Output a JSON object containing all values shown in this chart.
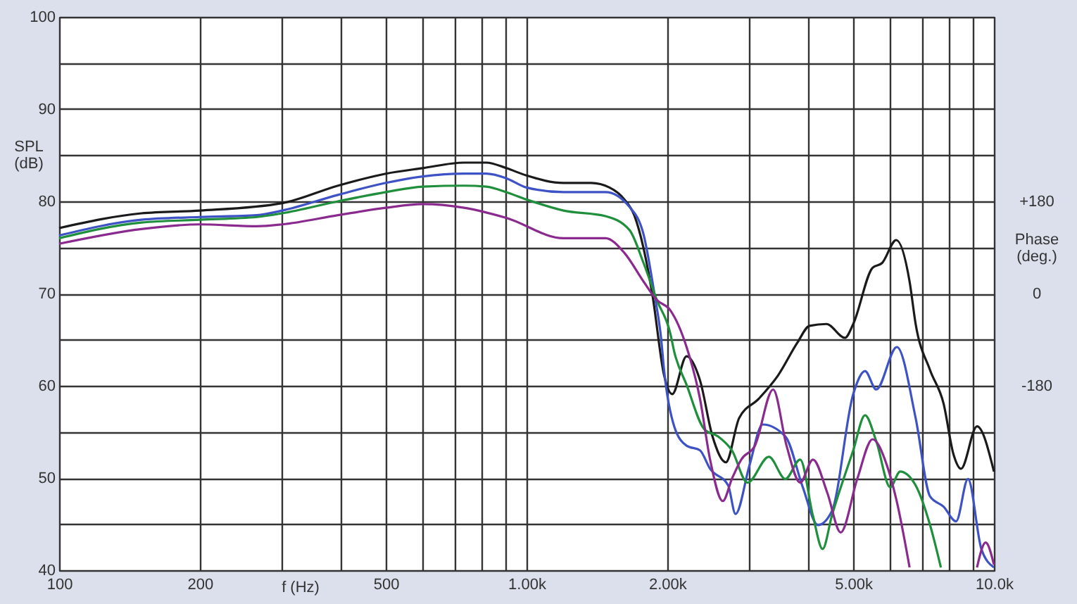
{
  "chart_data": {
    "type": "line",
    "xlabel": "f (Hz)",
    "ylabel": "SPL (dB)",
    "y2label": "Phase (deg.)",
    "log": "x",
    "grid": true,
    "marker": "none",
    "line_style": "solid",
    "xlim": [
      100,
      10000
    ],
    "xticks": [
      100,
      {
        "value": 200,
        "label": "200"
      },
      {
        "value": 300,
        "label": null
      },
      {
        "value": 400,
        "label": null
      },
      {
        "value": 500,
        "label": "500"
      },
      {
        "value": 600,
        "label": null
      },
      {
        "value": 700,
        "label": null
      },
      {
        "value": 800,
        "label": null
      },
      {
        "value": 900,
        "label": null
      },
      {
        "value": 1000,
        "label": "1.00k"
      },
      {
        "value": 2000,
        "label": "2.00k"
      },
      {
        "value": 3000,
        "label": null
      },
      {
        "value": 4000,
        "label": null
      },
      {
        "value": 5000,
        "label": "5.00k"
      },
      {
        "value": 6000,
        "label": null
      },
      {
        "value": 7000,
        "label": null
      },
      {
        "value": 8000,
        "label": null
      },
      {
        "value": 9000,
        "label": null
      },
      {
        "value": 10000,
        "label": "10.0k"
      }
    ],
    "ylim": [
      40,
      100
    ],
    "yticks": [
      40,
      {
        "value": 45,
        "label": null
      },
      50,
      {
        "value": 55,
        "label": null
      },
      60,
      {
        "value": 65,
        "label": null
      },
      70,
      {
        "value": 75,
        "label": null
      },
      80,
      {
        "value": 85,
        "label": null
      },
      90,
      {
        "value": 95,
        "label": null
      },
      100
    ],
    "y2lim": [
      -540,
      540
    ],
    "y2ticks": [
      {
        "value": 180,
        "label": "+180"
      },
      0,
      -180
    ],
    "series": [
      {
        "color": "#1a1a1a",
        "x": [
          100,
          150,
          200,
          300,
          395,
          500,
          600,
          735,
          820,
          905,
          1000,
          1200,
          1375,
          1505,
          1620,
          1700,
          1780,
          1860,
          1970,
          2050,
          2200,
          2350,
          2500,
          2670,
          2850,
          3140,
          3450,
          3800,
          4030,
          4380,
          4800,
          5000,
          5500,
          5760,
          6180,
          6600,
          6800,
          7300,
          7800,
          8200,
          8500,
          9200,
          10000
        ],
        "values": [
          77.1,
          78.7,
          79.0,
          79.8,
          81.7,
          83.0,
          83.6,
          84.2,
          84.2,
          83.6,
          82.8,
          82.0,
          82.0,
          81.5,
          80.2,
          78.5,
          74.9,
          69.8,
          61.1,
          59.1,
          63.2,
          60.6,
          54.5,
          51.7,
          56.5,
          58.6,
          61.1,
          64.7,
          66.5,
          66.7,
          65.2,
          66.7,
          72.8,
          73.3,
          75.8,
          71.3,
          66.7,
          61.7,
          58.1,
          52.5,
          51.0,
          55.6,
          50.7
        ]
      },
      {
        "color": "#3d52c4",
        "x": [
          100,
          150,
          200,
          265,
          300,
          395,
          500,
          600,
          735,
          820,
          905,
          1000,
          1200,
          1475,
          1660,
          1780,
          1880,
          1940,
          1970,
          2070,
          2200,
          2350,
          2470,
          2700,
          2800,
          3000,
          3200,
          3580,
          3900,
          4200,
          4500,
          5000,
          5300,
          5600,
          6200,
          6800,
          7300,
          7800,
          8300,
          8800,
          9400,
          10000
        ],
        "values": [
          76.3,
          78.0,
          78.3,
          78.5,
          79.0,
          80.7,
          82.0,
          82.7,
          83.0,
          83.0,
          82.5,
          81.5,
          81.0,
          81.0,
          79.4,
          76.4,
          69.8,
          65.2,
          61.6,
          55.6,
          53.5,
          53.0,
          51.0,
          49.2,
          46.1,
          51.4,
          55.8,
          54.5,
          49.0,
          44.9,
          46.4,
          59.1,
          61.6,
          59.6,
          64.2,
          56.5,
          48.0,
          46.9,
          45.3,
          49.9,
          42.3,
          40.3
        ]
      },
      {
        "color": "#1f8f3c",
        "x": [
          100,
          150,
          200,
          265,
          300,
          395,
          500,
          600,
          735,
          820,
          905,
          1000,
          1200,
          1475,
          1660,
          1780,
          1900,
          2030,
          2070,
          2200,
          2400,
          2570,
          2750,
          2970,
          3300,
          3580,
          3850,
          4100,
          4300,
          4500,
          5000,
          5300,
          5600,
          6000,
          6300,
          6800,
          7300,
          7700
        ],
        "values": [
          76.0,
          77.7,
          78.0,
          78.3,
          78.7,
          80.0,
          81.0,
          81.6,
          81.7,
          81.6,
          81.0,
          80.2,
          79.0,
          78.4,
          76.9,
          73.3,
          69.3,
          65.7,
          63.7,
          60.1,
          55.3,
          54.5,
          53.0,
          49.5,
          52.3,
          49.9,
          52.0,
          45.9,
          42.3,
          45.9,
          53.0,
          56.8,
          54.0,
          49.0,
          50.7,
          49.2,
          44.9,
          40.3
        ]
      },
      {
        "color": "#8b2a8e",
        "x": [
          100,
          150,
          200,
          265,
          300,
          395,
          500,
          600,
          735,
          905,
          1200,
          1475,
          1620,
          1780,
          1900,
          2030,
          2200,
          2350,
          2470,
          2630,
          2750,
          2880,
          3080,
          3370,
          3600,
          3850,
          4100,
          4400,
          4700,
          5100,
          5500,
          5900,
          6200,
          6600,
          8000,
          9200,
          9600,
          10000
        ],
        "values": [
          75.4,
          77.0,
          77.5,
          77.3,
          77.5,
          78.5,
          79.3,
          79.7,
          79.3,
          78.2,
          76.0,
          76.0,
          74.4,
          71.3,
          69.3,
          68.2,
          64.2,
          58.6,
          52.0,
          47.5,
          49.9,
          52.0,
          53.5,
          59.6,
          53.5,
          49.5,
          52.0,
          48.4,
          44.1,
          49.9,
          54.2,
          51.4,
          47.4,
          40.3,
          null,
          40.3,
          43.0,
          40.6
        ]
      }
    ]
  }
}
